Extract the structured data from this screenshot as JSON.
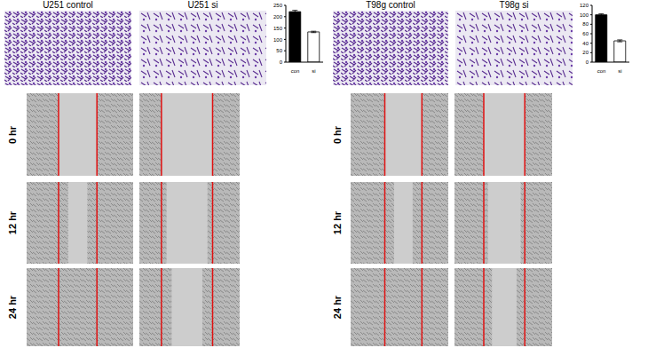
{
  "figure": {
    "invasion_images": [
      "U251 control",
      "U251 si",
      "T98g control",
      "T98g si"
    ],
    "time_points": [
      "0 hr",
      "12 hr",
      "24 hr"
    ]
  },
  "chart_data": [
    {
      "type": "bar",
      "categories": [
        "con",
        "si"
      ],
      "values": [
        222,
        133
      ],
      "errors": [
        6,
        3
      ],
      "colors": [
        "#000000",
        "#ffffff"
      ],
      "ylim": [
        0,
        250
      ],
      "yticks": [
        0,
        50,
        100,
        150,
        200,
        250
      ]
    },
    {
      "type": "bar",
      "categories": [
        "con",
        "si"
      ],
      "values": [
        100,
        45
      ],
      "errors": [
        2,
        2
      ],
      "colors": [
        "#000000",
        "#ffffff"
      ],
      "ylim": [
        0,
        120
      ],
      "yticks": [
        0,
        20,
        40,
        60,
        80,
        100,
        120
      ]
    }
  ]
}
